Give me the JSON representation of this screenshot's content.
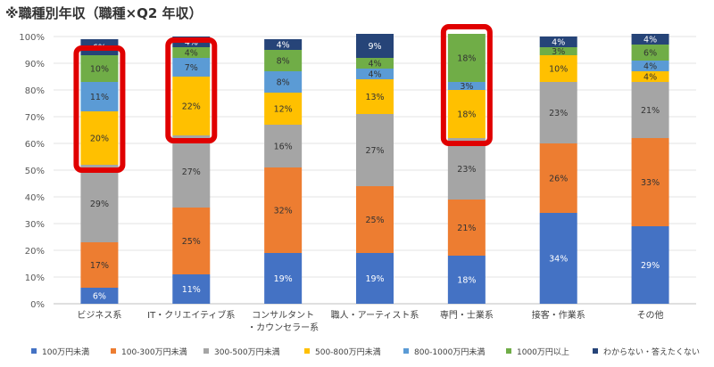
{
  "title": "※職種別年収（職種×Q2 年収）",
  "chart_data": {
    "type": "bar",
    "stacked": true,
    "title": "※職種別年収（職種×Q2 年収）",
    "ylim": [
      0,
      100
    ],
    "y_ticks": [
      "0%",
      "10%",
      "20%",
      "30%",
      "40%",
      "50%",
      "60%",
      "70%",
      "80%",
      "90%",
      "100%"
    ],
    "categories": [
      [
        "ビジネス系"
      ],
      [
        "IT・クリエイティブ系"
      ],
      [
        "コンサルタント",
        "・カウンセラー系"
      ],
      [
        "職人・アーティスト系"
      ],
      [
        "専門・士業系"
      ],
      [
        "接客・作業系"
      ],
      [
        "その他"
      ]
    ],
    "series": [
      {
        "name": "100万円未満",
        "color": "#4472c4",
        "values": [
          6,
          11,
          19,
          19,
          18,
          34,
          29
        ]
      },
      {
        "name": "100-300万円未満",
        "color": "#ed7d31",
        "values": [
          17,
          25,
          32,
          25,
          21,
          26,
          33
        ]
      },
      {
        "name": "300-500万円未満",
        "color": "#a5a5a5",
        "values": [
          29,
          27,
          16,
          27,
          23,
          23,
          21
        ]
      },
      {
        "name": "500-800万円未満",
        "color": "#ffc000",
        "values": [
          20,
          22,
          12,
          13,
          18,
          10,
          4
        ]
      },
      {
        "name": "800-1000万円未満",
        "color": "#5b9bd5",
        "values": [
          11,
          7,
          8,
          4,
          3,
          0,
          4
        ]
      },
      {
        "name": "1000万円以上",
        "color": "#70ad47",
        "values": [
          10,
          4,
          8,
          4,
          18,
          3,
          6
        ]
      },
      {
        "name": "わからない・答えたくない",
        "color": "#264478",
        "values": [
          6,
          4,
          4,
          9,
          0,
          4,
          4
        ]
      }
    ],
    "segment_labels": [
      [
        "6%",
        "17%",
        "29%",
        "20%",
        "11%",
        "10%",
        "6%"
      ],
      [
        "11%",
        "25%",
        "27%",
        "22%",
        "7%",
        "4%",
        "4%"
      ],
      [
        "19%",
        "32%",
        "16%",
        "12%",
        "8%",
        "8%",
        "4%"
      ],
      [
        "19%",
        "25%",
        "27%",
        "13%",
        "4%",
        "4%",
        "9%"
      ],
      [
        "18%",
        "21%",
        "23%",
        "18%",
        "3%",
        "18%",
        ""
      ],
      [
        "34%",
        "26%",
        "23%",
        "10%",
        "",
        "3%",
        "4%"
      ],
      [
        "29%",
        "33%",
        "21%",
        "4%",
        "4%",
        "6%",
        "4%"
      ]
    ],
    "highlight": [
      {
        "category_index": 0,
        "series_from": 3,
        "series_to": 5,
        "color": "#e00000"
      },
      {
        "category_index": 1,
        "series_from": 3,
        "series_to": 5,
        "color": "#e00000"
      },
      {
        "category_index": 4,
        "series_from": 3,
        "series_to": 5,
        "color": "#e00000"
      }
    ],
    "grid": true,
    "legend_position": "bottom"
  }
}
